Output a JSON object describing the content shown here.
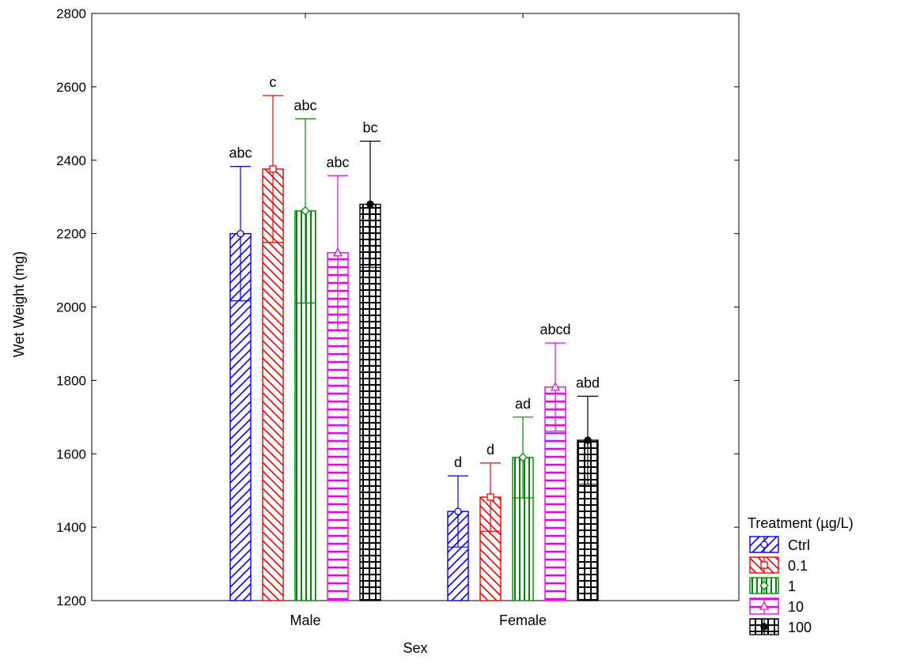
{
  "chart_data": {
    "type": "bar",
    "xlabel": "Sex",
    "ylabel": "Wet Weight (mg)",
    "categories": [
      "Male",
      "Female"
    ],
    "ylim": [
      1200,
      2800
    ],
    "yticks": [
      1200,
      1400,
      1600,
      1800,
      2000,
      2200,
      2400,
      2600,
      2800
    ],
    "error_bars": "mean ± error",
    "legend": {
      "title": "Treatment (µg/L)",
      "placement": "bottom-right outside plot"
    },
    "series": [
      {
        "name": "Ctrl",
        "color": "#0000ee",
        "pattern": "diagonal-forward",
        "marker": "circle",
        "values": [
          2200,
          1443
        ],
        "err": [
          183,
          97
        ],
        "labels": [
          "abc",
          "d"
        ]
      },
      {
        "name": "0.1",
        "color": "#ee0000",
        "pattern": "diagonal-back",
        "marker": "square",
        "values": [
          2376,
          1482
        ],
        "err": [
          200,
          93
        ],
        "labels": [
          "c",
          "d"
        ]
      },
      {
        "name": "1",
        "color": "#008800",
        "pattern": "vertical",
        "marker": "diamond",
        "values": [
          2262,
          1590
        ],
        "err": [
          251,
          110
        ],
        "labels": [
          "abc",
          "ad"
        ]
      },
      {
        "name": "10",
        "color": "#ee00ee",
        "pattern": "horizontal",
        "marker": "triangle",
        "values": [
          2148,
          1782
        ],
        "err": [
          210,
          120
        ],
        "labels": [
          "abc",
          "abcd"
        ]
      },
      {
        "name": "100",
        "color": "#000000",
        "pattern": "grid",
        "marker": "filled-circle",
        "values": [
          2280,
          1637
        ],
        "err": [
          172,
          120
        ],
        "labels": [
          "bc",
          "abd"
        ]
      }
    ]
  }
}
